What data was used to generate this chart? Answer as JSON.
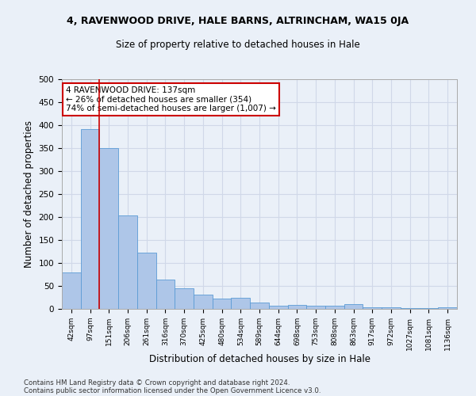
{
  "title1": "4, RAVENWOOD DRIVE, HALE BARNS, ALTRINCHAM, WA15 0JA",
  "title2": "Size of property relative to detached houses in Hale",
  "xlabel": "Distribution of detached houses by size in Hale",
  "ylabel": "Number of detached properties",
  "categories": [
    "42sqm",
    "97sqm",
    "151sqm",
    "206sqm",
    "261sqm",
    "316sqm",
    "370sqm",
    "425sqm",
    "480sqm",
    "534sqm",
    "589sqm",
    "644sqm",
    "698sqm",
    "753sqm",
    "808sqm",
    "863sqm",
    "917sqm",
    "972sqm",
    "1027sqm",
    "1081sqm",
    "1136sqm"
  ],
  "values": [
    80,
    392,
    350,
    204,
    122,
    63,
    45,
    31,
    22,
    24,
    13,
    7,
    8,
    7,
    7,
    10,
    4,
    3,
    2,
    2,
    3
  ],
  "bar_color": "#aec6e8",
  "bar_edge_color": "#5b9bd5",
  "annotation_line1": "4 RAVENWOOD DRIVE: 137sqm",
  "annotation_line2": "← 26% of detached houses are smaller (354)",
  "annotation_line3": "74% of semi-detached houses are larger (1,007) →",
  "annotation_border_color": "#cc0000",
  "vline_color": "#cc0000",
  "vline_x_index": 1.5,
  "footer1": "Contains HM Land Registry data © Crown copyright and database right 2024.",
  "footer2": "Contains public sector information licensed under the Open Government Licence v3.0.",
  "ylim": [
    0,
    500
  ],
  "grid_color": "#d0d8e8",
  "background_color": "#eaf0f8",
  "plot_bg_color": "#eaf0f8"
}
